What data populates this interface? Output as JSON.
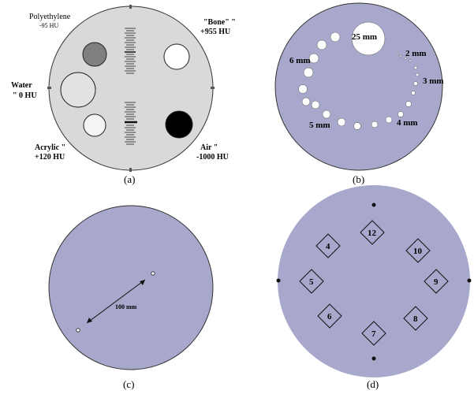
{
  "figure": {
    "panel_a": {
      "caption": "(a)",
      "inserts": {
        "polyethylene": {
          "name": "Polyethylene",
          "hu": "-95 HU"
        },
        "bone": {
          "name": "\"Bone\" \"",
          "hu": "+955 HU"
        },
        "water": {
          "name": "Water",
          "hu": "\" 0 HU"
        },
        "acrylic": {
          "name": "Acrylic \"",
          "hu": "+120 HU"
        },
        "air": {
          "name": "Air \"",
          "hu": "-1000 HU"
        }
      }
    },
    "panel_b": {
      "caption": "(b)",
      "labels": {
        "d25": "25 mm",
        "d2": "2 mm",
        "d3": "3 mm",
        "d4": "4 mm",
        "d5": "5 mm",
        "d6": "6 mm"
      }
    },
    "panel_c": {
      "caption": "(c)",
      "distance_label": "100 mm"
    },
    "panel_d": {
      "caption": "(d)",
      "markers": [
        "12",
        "10",
        "9",
        "8",
        "7",
        "6",
        "5",
        "4"
      ]
    }
  }
}
